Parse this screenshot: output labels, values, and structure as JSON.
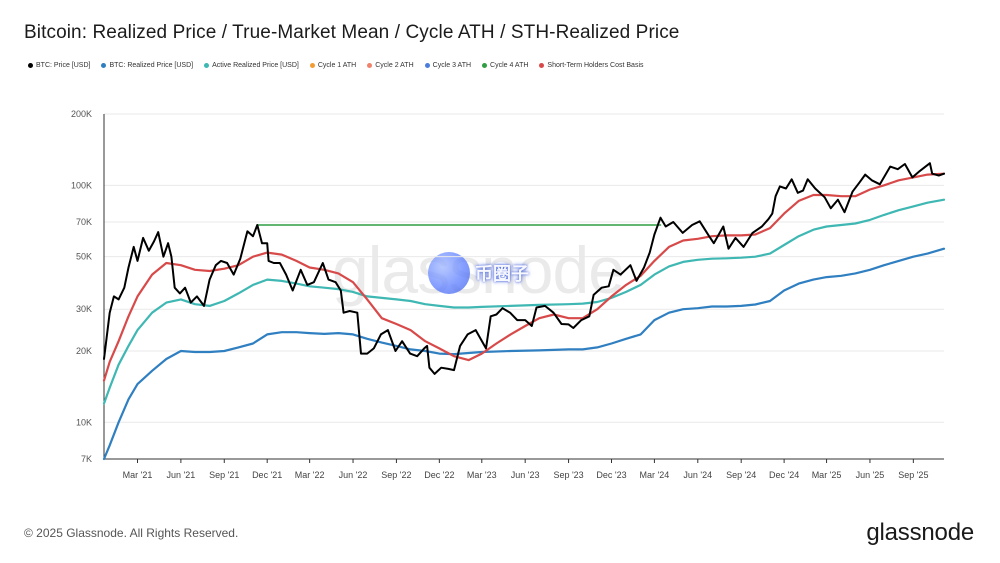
{
  "header": {
    "title": "Bitcoin: Realized Price / True-Market Mean / Cycle ATH / STH-Realized Price"
  },
  "footer": {
    "copyright": "© 2025 Glassnode. All Rights Reserved.",
    "logo": "glassnode"
  },
  "watermark": {
    "text": "glassnode",
    "stamp_text": "币圈子"
  },
  "chart_data": {
    "type": "line",
    "title": "Bitcoin: Realized Price / True-Market Mean / Cycle ATH / STH-Realized Price",
    "xlabel": "",
    "ylabel": "",
    "y_scale": "log",
    "ylim": [
      7000,
      200000
    ],
    "y_ticks": [
      7000,
      10000,
      20000,
      30000,
      50000,
      70000,
      100000,
      200000
    ],
    "y_tick_labels": [
      "7K",
      "10K",
      "20K",
      "30K",
      "50K",
      "70K",
      "100K",
      "200K"
    ],
    "x_range": [
      "2020-12-20",
      "2025-11-05"
    ],
    "x_ticks": [
      "2021-03-01",
      "2021-06-01",
      "2021-09-01",
      "2021-12-01",
      "2022-03-01",
      "2022-06-01",
      "2022-09-01",
      "2022-12-01",
      "2023-03-01",
      "2023-06-01",
      "2023-09-01",
      "2023-12-01",
      "2024-03-01",
      "2024-06-01",
      "2024-09-01",
      "2024-12-01",
      "2025-03-01",
      "2025-06-01",
      "2025-09-01"
    ],
    "x_tick_labels": [
      "Mar '21",
      "Jun '21",
      "Sep '21",
      "Dec '21",
      "Mar '22",
      "Jun '22",
      "Sep '22",
      "Dec '22",
      "Mar '23",
      "Jun '23",
      "Sep '23",
      "Dec '23",
      "Mar '24",
      "Jun '24",
      "Sep '24",
      "Dec '24",
      "Mar '25",
      "Jun '25",
      "Sep '25"
    ],
    "grid": true,
    "legend": "top-left",
    "series": [
      {
        "name": "BTC: Price [USD]",
        "color": "#000000",
        "width": 2,
        "x": [
          "2020-12-20",
          "2021-01-01",
          "2021-01-10",
          "2021-01-20",
          "2021-02-01",
          "2021-02-10",
          "2021-02-21",
          "2021-03-01",
          "2021-03-13",
          "2021-03-25",
          "2021-04-05",
          "2021-04-14",
          "2021-04-25",
          "2021-05-05",
          "2021-05-12",
          "2021-05-19",
          "2021-05-30",
          "2021-06-10",
          "2021-06-22",
          "2021-07-05",
          "2021-07-20",
          "2021-08-01",
          "2021-08-14",
          "2021-08-25",
          "2021-09-07",
          "2021-09-21",
          "2021-10-05",
          "2021-10-20",
          "2021-11-01",
          "2021-11-10",
          "2021-11-20",
          "2021-12-01",
          "2021-12-04",
          "2021-12-15",
          "2021-12-28",
          "2022-01-10",
          "2022-01-24",
          "2022-02-10",
          "2022-02-24",
          "2022-03-10",
          "2022-03-29",
          "2022-04-10",
          "2022-04-25",
          "2022-05-06",
          "2022-05-12",
          "2022-05-25",
          "2022-06-10",
          "2022-06-18",
          "2022-07-01",
          "2022-07-15",
          "2022-07-30",
          "2022-08-14",
          "2022-08-30",
          "2022-09-13",
          "2022-09-30",
          "2022-10-15",
          "2022-10-30",
          "2022-11-05",
          "2022-11-10",
          "2022-11-21",
          "2022-12-05",
          "2022-12-20",
          "2023-01-01",
          "2023-01-14",
          "2023-01-30",
          "2023-02-16",
          "2023-03-10",
          "2023-03-20",
          "2023-04-01",
          "2023-04-14",
          "2023-04-30",
          "2023-05-15",
          "2023-06-01",
          "2023-06-15",
          "2023-06-25",
          "2023-07-13",
          "2023-07-31",
          "2023-08-17",
          "2023-09-01",
          "2023-09-11",
          "2023-09-28",
          "2023-10-15",
          "2023-10-24",
          "2023-11-10",
          "2023-11-25",
          "2023-12-05",
          "2023-12-20",
          "2024-01-10",
          "2024-01-23",
          "2024-02-08",
          "2024-02-20",
          "2024-03-01",
          "2024-03-14",
          "2024-03-25",
          "2024-04-10",
          "2024-04-30",
          "2024-05-20",
          "2024-06-05",
          "2024-06-25",
          "2024-07-05",
          "2024-07-25",
          "2024-08-05",
          "2024-08-20",
          "2024-09-06",
          "2024-09-25",
          "2024-10-15",
          "2024-10-29",
          "2024-11-06",
          "2024-11-13",
          "2024-11-22",
          "2024-12-05",
          "2024-12-17",
          "2024-12-30",
          "2025-01-10",
          "2025-01-20",
          "2025-02-05",
          "2025-02-25",
          "2025-03-10",
          "2025-03-25",
          "2025-04-08",
          "2025-04-25",
          "2025-05-10",
          "2025-05-22",
          "2025-06-05",
          "2025-06-22",
          "2025-07-14",
          "2025-07-30",
          "2025-08-14",
          "2025-08-30",
          "2025-09-15",
          "2025-10-06",
          "2025-10-11",
          "2025-10-25",
          "2025-11-05"
        ],
        "y": [
          18500,
          29000,
          34000,
          33000,
          37000,
          45000,
          55000,
          48000,
          60000,
          53000,
          58000,
          63500,
          50000,
          57000,
          50000,
          37000,
          35000,
          37000,
          32000,
          34000,
          31000,
          40000,
          46000,
          48000,
          47000,
          42000,
          49000,
          64000,
          61000,
          68000,
          57000,
          57000,
          48000,
          47000,
          47000,
          42000,
          36000,
          44000,
          38000,
          39000,
          47000,
          40000,
          39000,
          36000,
          29000,
          29500,
          29000,
          19500,
          19500,
          20500,
          23500,
          24500,
          20000,
          22000,
          19500,
          19000,
          20500,
          21000,
          17000,
          16000,
          17000,
          16800,
          16600,
          21000,
          23500,
          24500,
          20500,
          28000,
          28500,
          30300,
          29000,
          27000,
          27000,
          25500,
          30500,
          31000,
          29000,
          26000,
          25900,
          25000,
          27000,
          28000,
          34500,
          37000,
          37500,
          44000,
          42000,
          46000,
          39500,
          45000,
          52000,
          62000,
          73000,
          67000,
          70000,
          63000,
          68000,
          70500,
          61000,
          57000,
          67000,
          54000,
          60000,
          55000,
          63000,
          67000,
          72000,
          76000,
          90000,
          99000,
          97000,
          106000,
          93000,
          95000,
          106000,
          97000,
          89000,
          80000,
          87000,
          77000,
          94000,
          103000,
          111000,
          105000,
          101000,
          120000,
          117000,
          123000,
          108000,
          115000,
          124000,
          112000,
          110000,
          112000
        ]
      },
      {
        "name": "BTC: Realized Price [USD]",
        "color": "#2f7fc1",
        "width": 2.2,
        "x": [
          "2020-12-20",
          "2021-01-01",
          "2021-01-20",
          "2021-02-10",
          "2021-03-01",
          "2021-04-01",
          "2021-05-01",
          "2021-06-01",
          "2021-07-01",
          "2021-08-01",
          "2021-09-01",
          "2021-10-01",
          "2021-11-01",
          "2021-12-01",
          "2022-01-01",
          "2022-02-01",
          "2022-03-01",
          "2022-04-01",
          "2022-05-01",
          "2022-06-01",
          "2022-07-01",
          "2022-08-01",
          "2022-09-01",
          "2022-10-01",
          "2022-11-01",
          "2022-12-01",
          "2023-01-01",
          "2023-02-01",
          "2023-03-01",
          "2023-05-01",
          "2023-07-01",
          "2023-09-01",
          "2023-10-01",
          "2023-11-01",
          "2023-12-01",
          "2024-01-01",
          "2024-02-01",
          "2024-03-01",
          "2024-04-01",
          "2024-05-01",
          "2024-06-01",
          "2024-07-01",
          "2024-08-01",
          "2024-09-01",
          "2024-10-01",
          "2024-11-01",
          "2024-12-01",
          "2025-01-01",
          "2025-02-01",
          "2025-03-01",
          "2025-04-01",
          "2025-05-01",
          "2025-06-01",
          "2025-07-01",
          "2025-08-01",
          "2025-09-01",
          "2025-10-01",
          "2025-11-05"
        ],
        "y": [
          7000,
          8000,
          10000,
          12500,
          14500,
          16500,
          18500,
          20000,
          19800,
          19800,
          20000,
          20700,
          21500,
          23500,
          24000,
          24000,
          23800,
          23600,
          23800,
          23500,
          22500,
          21700,
          21000,
          20300,
          20000,
          19500,
          19400,
          19600,
          19800,
          20000,
          20100,
          20300,
          20300,
          20700,
          21500,
          22500,
          23500,
          27000,
          29000,
          30000,
          30300,
          30800,
          30800,
          31000,
          31400,
          32500,
          36000,
          38500,
          40000,
          41000,
          41500,
          42500,
          44000,
          46000,
          48000,
          50000,
          51500,
          54000
        ]
      },
      {
        "name": "Active Realized Price [USD]",
        "color": "#3fb7b3",
        "width": 2.2,
        "x": [
          "2020-12-20",
          "2021-01-01",
          "2021-01-20",
          "2021-02-10",
          "2021-03-01",
          "2021-04-01",
          "2021-05-01",
          "2021-06-01",
          "2021-07-01",
          "2021-08-01",
          "2021-09-01",
          "2021-10-01",
          "2021-11-01",
          "2021-12-01",
          "2022-01-01",
          "2022-02-01",
          "2022-03-01",
          "2022-04-01",
          "2022-05-01",
          "2022-06-01",
          "2022-07-01",
          "2022-08-01",
          "2022-09-01",
          "2022-10-01",
          "2022-11-01",
          "2022-12-01",
          "2023-01-01",
          "2023-02-01",
          "2023-03-01",
          "2023-05-01",
          "2023-07-01",
          "2023-09-01",
          "2023-10-01",
          "2023-11-01",
          "2023-12-01",
          "2024-01-01",
          "2024-02-01",
          "2024-03-01",
          "2024-04-01",
          "2024-05-01",
          "2024-06-01",
          "2024-07-01",
          "2024-08-01",
          "2024-09-01",
          "2024-10-01",
          "2024-11-01",
          "2024-12-01",
          "2025-01-01",
          "2025-02-01",
          "2025-03-01",
          "2025-04-01",
          "2025-05-01",
          "2025-06-01",
          "2025-07-01",
          "2025-08-01",
          "2025-09-01",
          "2025-10-01",
          "2025-11-05"
        ],
        "y": [
          12000,
          14000,
          17500,
          21000,
          24500,
          29000,
          32000,
          33000,
          31500,
          31000,
          32500,
          35000,
          38000,
          40000,
          39500,
          38500,
          37500,
          37000,
          36500,
          35500,
          34000,
          33500,
          33000,
          32500,
          31500,
          31000,
          30500,
          30500,
          30700,
          31000,
          31300,
          31500,
          31700,
          32200,
          33500,
          35500,
          38000,
          42000,
          45500,
          47500,
          48500,
          49000,
          49200,
          49500,
          50000,
          51500,
          56000,
          61000,
          65000,
          67000,
          68000,
          69000,
          71500,
          75000,
          78500,
          81500,
          84500,
          87000
        ]
      },
      {
        "name": "Cycle 1 ATH",
        "color": "#f39c33",
        "width": 1.5,
        "x": [],
        "y": []
      },
      {
        "name": "Cycle 2 ATH",
        "color": "#f0826b",
        "width": 1.5,
        "x": [],
        "y": []
      },
      {
        "name": "Cycle 3 ATH",
        "color": "#4c7ddb",
        "width": 1.5,
        "x": [],
        "y": []
      },
      {
        "name": "Cycle 4 ATH",
        "color": "#2e9e42",
        "width": 1.5,
        "x": [
          "2021-11-10",
          "2024-03-14"
        ],
        "y": [
          68000,
          68000
        ]
      },
      {
        "name": "Short-Term Holders Cost Basis",
        "color": "#d84a4a",
        "width": 2.2,
        "x": [
          "2020-12-20",
          "2021-01-01",
          "2021-01-20",
          "2021-02-10",
          "2021-03-01",
          "2021-04-01",
          "2021-05-01",
          "2021-06-01",
          "2021-07-01",
          "2021-08-01",
          "2021-09-01",
          "2021-10-01",
          "2021-11-01",
          "2021-12-01",
          "2022-01-01",
          "2022-02-01",
          "2022-03-01",
          "2022-04-01",
          "2022-05-01",
          "2022-06-01",
          "2022-07-01",
          "2022-08-01",
          "2022-09-01",
          "2022-10-01",
          "2022-11-01",
          "2022-12-01",
          "2023-01-01",
          "2023-02-01",
          "2023-03-01",
          "2023-04-01",
          "2023-05-01",
          "2023-06-01",
          "2023-07-01",
          "2023-08-01",
          "2023-09-01",
          "2023-10-01",
          "2023-11-01",
          "2023-12-01",
          "2024-01-01",
          "2024-02-01",
          "2024-03-01",
          "2024-04-01",
          "2024-05-01",
          "2024-06-01",
          "2024-07-01",
          "2024-08-01",
          "2024-09-01",
          "2024-10-01",
          "2024-11-01",
          "2024-12-01",
          "2025-01-01",
          "2025-02-01",
          "2025-03-01",
          "2025-04-01",
          "2025-05-01",
          "2025-06-01",
          "2025-07-01",
          "2025-08-01",
          "2025-09-01",
          "2025-10-01",
          "2025-11-05"
        ],
        "y": [
          15000,
          18000,
          22000,
          28000,
          34000,
          42000,
          47000,
          46000,
          44000,
          43500,
          44500,
          46000,
          50000,
          52000,
          51000,
          48000,
          45000,
          44000,
          42500,
          39000,
          33000,
          27500,
          26000,
          24500,
          22000,
          20500,
          19000,
          18300,
          19500,
          21500,
          23500,
          25500,
          27500,
          28500,
          27500,
          27500,
          30000,
          34000,
          38000,
          41500,
          48000,
          55000,
          58500,
          59500,
          61000,
          61500,
          61500,
          62000,
          66000,
          76000,
          86000,
          91000,
          91000,
          90000,
          90000,
          96000,
          100000,
          105000,
          108000,
          111000,
          112000
        ]
      }
    ]
  }
}
